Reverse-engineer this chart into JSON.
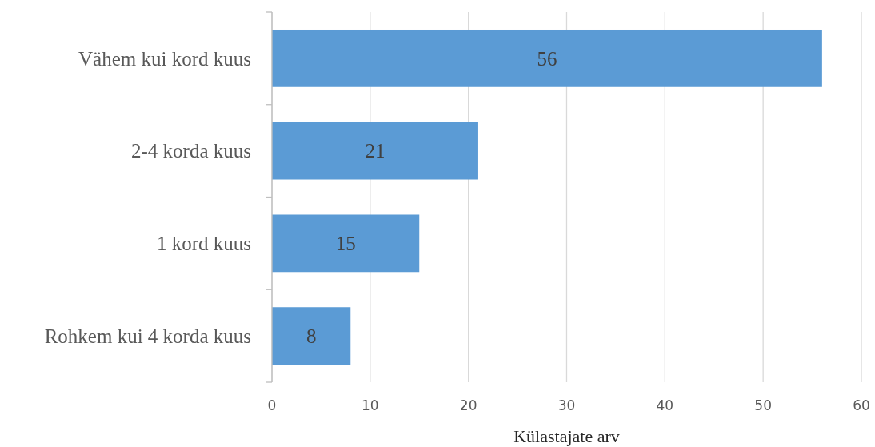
{
  "chart_data": {
    "type": "bar",
    "orientation": "horizontal",
    "categories": [
      "Vähem kui kord kuus",
      "2-4 korda kuus",
      "1 kord kuus",
      "Rohkem kui 4 korda kuus"
    ],
    "values": [
      56,
      21,
      15,
      8
    ],
    "color": "#5b9bd5",
    "xlabel": "Külastajate arv",
    "xlim": [
      0,
      60
    ],
    "xticks": [
      0,
      10,
      20,
      30,
      40,
      50,
      60
    ],
    "grid": "x",
    "data_labels": true
  }
}
